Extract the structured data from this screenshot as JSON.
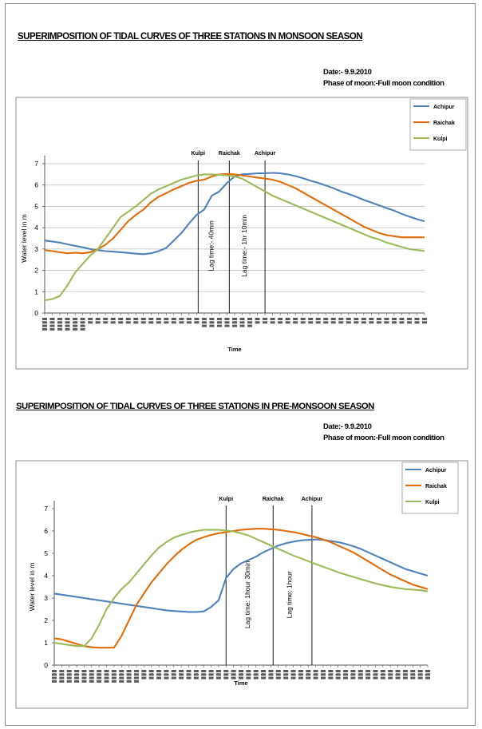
{
  "charts": [
    {
      "heading": "SUPERIMPOSITION OF TIDAL CURVES OF THREE STATIONS IN MONSOON SEASON",
      "date_text": "Date:- 9.9.2010",
      "moon_text": "Phase of moon:-Full moon condition"
    },
    {
      "heading": "SUPERIMPOSITION OF TIDAL CURVES OF THREE STATIONS IN PRE-MONSOON SEASON",
      "date_text": "Date:- 9.9.2010",
      "moon_text": "Phase of moon:-Full moon condition"
    }
  ],
  "chart_data": [
    {
      "type": "line",
      "title": "SUPERIMPOSITION OF TIDAL CURVES OF THREE STATIONS IN MONSOON SEASON",
      "xlabel": "Time",
      "ylabel": "Water level in m",
      "ylim": [
        0,
        7
      ],
      "yticks": [
        0,
        1,
        2,
        3,
        4,
        5,
        6,
        7
      ],
      "grid": true,
      "legend_position": "top-right",
      "x": [
        0,
        1,
        2,
        3,
        4,
        5,
        6,
        7,
        8,
        9,
        10,
        11,
        12,
        13,
        14,
        15,
        16,
        17,
        18,
        19,
        20,
        21,
        22,
        23,
        24,
        25,
        26,
        27,
        28,
        29,
        30,
        31,
        32,
        33,
        34,
        35,
        36,
        37,
        38,
        39,
        40,
        41,
        42,
        43,
        44,
        45,
        46,
        47,
        48,
        49,
        50
      ],
      "series": [
        {
          "name": "Achipur",
          "color": "#4f81bd",
          "values": [
            3.4,
            3.35,
            3.3,
            3.22,
            3.15,
            3.08,
            3.0,
            2.95,
            2.9,
            2.88,
            2.85,
            2.82,
            2.78,
            2.76,
            2.8,
            2.9,
            3.05,
            3.4,
            3.75,
            4.2,
            4.6,
            4.85,
            5.5,
            5.7,
            6.1,
            6.4,
            6.5,
            6.52,
            6.55,
            6.55,
            6.57,
            6.55,
            6.5,
            6.42,
            6.32,
            6.2,
            6.1,
            5.98,
            5.85,
            5.7,
            5.58,
            5.45,
            5.3,
            5.18,
            5.05,
            4.92,
            4.8,
            4.65,
            4.52,
            4.4,
            4.3
          ]
        },
        {
          "name": "Raichak",
          "color": "#e36c09",
          "values": [
            2.95,
            2.9,
            2.85,
            2.8,
            2.83,
            2.8,
            2.85,
            3.0,
            3.2,
            3.5,
            3.9,
            4.3,
            4.6,
            4.85,
            5.2,
            5.45,
            5.62,
            5.8,
            5.95,
            6.1,
            6.2,
            6.25,
            6.4,
            6.5,
            6.52,
            6.5,
            6.45,
            6.4,
            6.35,
            6.3,
            6.25,
            6.15,
            6.0,
            5.85,
            5.65,
            5.45,
            5.25,
            5.05,
            4.85,
            4.65,
            4.45,
            4.25,
            4.05,
            3.9,
            3.75,
            3.65,
            3.6,
            3.55,
            3.55,
            3.55,
            3.55
          ]
        },
        {
          "name": "Kulpi",
          "color": "#9bbb59",
          "values": [
            0.6,
            0.65,
            0.8,
            1.3,
            1.9,
            2.3,
            2.7,
            3.0,
            3.5,
            4.0,
            4.5,
            4.75,
            5.0,
            5.3,
            5.6,
            5.8,
            5.95,
            6.1,
            6.25,
            6.35,
            6.45,
            6.5,
            6.5,
            6.48,
            6.45,
            6.4,
            6.3,
            6.1,
            5.9,
            5.7,
            5.5,
            5.35,
            5.2,
            5.05,
            4.9,
            4.75,
            4.6,
            4.45,
            4.3,
            4.15,
            4.0,
            3.85,
            3.7,
            3.55,
            3.45,
            3.3,
            3.2,
            3.1,
            3.0,
            2.95,
            2.9
          ]
        }
      ],
      "markers": [
        {
          "label": "Kulpi",
          "x": 20.2
        },
        {
          "label": "Raichak",
          "x": 24.3
        },
        {
          "label": "Achipur",
          "x": 29.0
        }
      ],
      "annotations": [
        {
          "text": "Lag time:- 40min",
          "x": 22.2
        },
        {
          "text": "Lag time:- 1hr 10min",
          "x": 26.6
        }
      ]
    },
    {
      "type": "line",
      "title": "SUPERIMPOSITION OF TIDAL CURVES OF THREE STATIONS IN PRE-MONSOON SEASON",
      "xlabel": "Time",
      "ylabel": "Water level in m",
      "ylim": [
        0,
        7
      ],
      "yticks": [
        0,
        1,
        2,
        3,
        4,
        5,
        6,
        7
      ],
      "grid": false,
      "legend_position": "top-right",
      "x": [
        0,
        1,
        2,
        3,
        4,
        5,
        6,
        7,
        8,
        9,
        10,
        11,
        12,
        13,
        14,
        15,
        16,
        17,
        18,
        19,
        20,
        21,
        22,
        23,
        24,
        25,
        26,
        27,
        28,
        29,
        30,
        31,
        32,
        33,
        34,
        35,
        36,
        37,
        38,
        39,
        40,
        41,
        42,
        43,
        44,
        45,
        46,
        47,
        48,
        49,
        50
      ],
      "series": [
        {
          "name": "Achipur",
          "color": "#4f81bd",
          "values": [
            3.2,
            3.15,
            3.1,
            3.05,
            3.0,
            2.95,
            2.9,
            2.85,
            2.8,
            2.75,
            2.7,
            2.65,
            2.6,
            2.55,
            2.5,
            2.45,
            2.42,
            2.4,
            2.38,
            2.38,
            2.4,
            2.6,
            2.9,
            3.9,
            4.3,
            4.55,
            4.7,
            4.85,
            5.05,
            5.2,
            5.35,
            5.45,
            5.52,
            5.58,
            5.6,
            5.62,
            5.6,
            5.55,
            5.5,
            5.42,
            5.32,
            5.2,
            5.05,
            4.9,
            4.75,
            4.6,
            4.45,
            4.3,
            4.2,
            4.1,
            4.0
          ]
        },
        {
          "name": "Raichak",
          "color": "#e36c09",
          "values": [
            1.2,
            1.15,
            1.05,
            0.95,
            0.85,
            0.8,
            0.78,
            0.78,
            0.78,
            1.3,
            2.0,
            2.7,
            3.2,
            3.7,
            4.1,
            4.5,
            4.85,
            5.15,
            5.4,
            5.6,
            5.72,
            5.82,
            5.9,
            5.95,
            6.0,
            6.05,
            6.08,
            6.1,
            6.1,
            6.08,
            6.05,
            6.0,
            5.95,
            5.88,
            5.8,
            5.72,
            5.62,
            5.5,
            5.35,
            5.2,
            5.05,
            4.85,
            4.65,
            4.45,
            4.25,
            4.05,
            3.9,
            3.75,
            3.6,
            3.5,
            3.4
          ]
        },
        {
          "name": "Kulpi",
          "color": "#9bbb59",
          "values": [
            1.0,
            0.95,
            0.9,
            0.85,
            0.85,
            1.2,
            1.8,
            2.5,
            3.0,
            3.4,
            3.7,
            4.1,
            4.5,
            4.9,
            5.25,
            5.5,
            5.7,
            5.82,
            5.92,
            6.0,
            6.05,
            6.05,
            6.05,
            6.02,
            5.98,
            5.9,
            5.8,
            5.65,
            5.5,
            5.35,
            5.2,
            5.05,
            4.9,
            4.78,
            4.65,
            4.52,
            4.4,
            4.28,
            4.15,
            4.05,
            3.95,
            3.85,
            3.75,
            3.65,
            3.58,
            3.5,
            3.45,
            3.4,
            3.38,
            3.35,
            3.3
          ]
        }
      ],
      "markers": [
        {
          "label": "Kulpi",
          "x": 23.0
        },
        {
          "label": "Raichak",
          "x": 29.3
        },
        {
          "label": "Achipur",
          "x": 34.5
        }
      ],
      "annotations": [
        {
          "text": "Lag time: 1hour 30min",
          "x": 26.2
        },
        {
          "text": "Lag time: 1hour",
          "x": 31.8
        }
      ]
    }
  ]
}
